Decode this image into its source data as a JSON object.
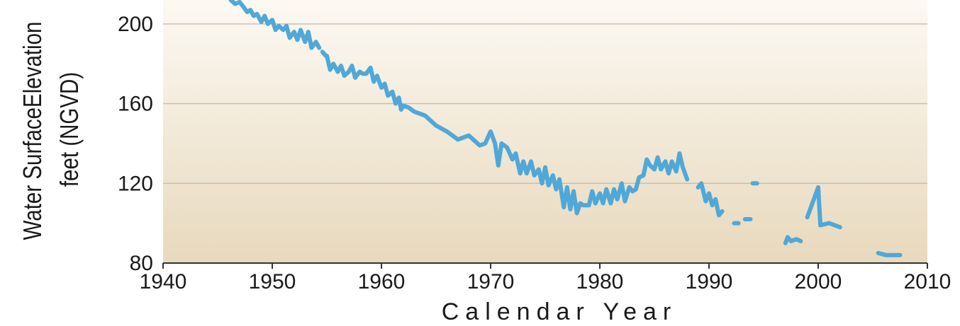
{
  "chart_data": {
    "type": "line",
    "title": "",
    "xlabel": "Calendar Year",
    "ylabel": [
      "Water SurfaceElevation",
      "feet (NGVD)"
    ],
    "xlim": [
      1940,
      2010
    ],
    "ylim": [
      80,
      212
    ],
    "x_ticks": [
      1940,
      1950,
      1960,
      1970,
      1980,
      1990,
      2000,
      2010
    ],
    "y_ticks": [
      80,
      120,
      160,
      200
    ],
    "grid": "horizontal",
    "colors": {
      "line": "#4fa8d8",
      "grid": "#c9bfae",
      "axis": "#333333",
      "bg_top": "#fcf9f3",
      "bg_bottom": "#e8d9bd"
    },
    "series": [
      {
        "segments": [
          [
            [
              1946.2,
              212
            ],
            [
              1946.6,
              210
            ],
            [
              1947.0,
              211
            ],
            [
              1947.3,
              209
            ],
            [
              1947.7,
              206
            ],
            [
              1948.0,
              207
            ],
            [
              1948.3,
              204
            ],
            [
              1948.6,
              205
            ],
            [
              1949.0,
              201
            ],
            [
              1949.3,
              204
            ],
            [
              1949.6,
              200
            ],
            [
              1950.0,
              202
            ],
            [
              1950.3,
              197
            ],
            [
              1950.6,
              199
            ],
            [
              1951.0,
              197
            ],
            [
              1951.3,
              199
            ],
            [
              1951.6,
              193
            ],
            [
              1952.0,
              196
            ],
            [
              1952.3,
              192
            ],
            [
              1952.6,
              197
            ],
            [
              1953.0,
              191
            ],
            [
              1953.3,
              196
            ],
            [
              1953.6,
              188
            ],
            [
              1954.0,
              191
            ],
            [
              1954.3,
              188
            ]
          ],
          [
            [
              1954.6,
              186
            ],
            [
              1954.9,
              184
            ]
          ],
          [
            [
              1955.0,
              184
            ],
            [
              1955.3,
              177
            ],
            [
              1955.6,
              180
            ],
            [
              1956.0,
              176
            ],
            [
              1956.3,
              179
            ],
            [
              1956.6,
              174
            ],
            [
              1957.0,
              176
            ],
            [
              1957.3,
              179
            ],
            [
              1957.6,
              173
            ],
            [
              1958.0,
              176
            ],
            [
              1958.3,
              175
            ],
            [
              1958.6,
              175
            ],
            [
              1959.0,
              178
            ],
            [
              1959.3,
              171
            ],
            [
              1959.6,
              174
            ],
            [
              1960.0,
              168
            ],
            [
              1960.3,
              170
            ],
            [
              1960.6,
              164
            ],
            [
              1961.0,
              166
            ],
            [
              1961.3,
              160
            ],
            [
              1961.6,
              163
            ],
            [
              1961.8,
              157
            ],
            [
              1962.0,
              159
            ],
            [
              1962.5,
              158
            ],
            [
              1963.0,
              156
            ],
            [
              1964.0,
              154
            ],
            [
              1965.0,
              149
            ],
            [
              1966.0,
              146
            ],
            [
              1967.0,
              142
            ],
            [
              1968.0,
              144
            ],
            [
              1969.0,
              139
            ],
            [
              1969.5,
              140
            ],
            [
              1970.0,
              146
            ],
            [
              1970.4,
              140
            ],
            [
              1970.7,
              129
            ],
            [
              1971.0,
              140
            ],
            [
              1971.5,
              138
            ],
            [
              1972.0,
              132
            ],
            [
              1972.3,
              135
            ],
            [
              1972.7,
              125
            ],
            [
              1973.0,
              131
            ],
            [
              1973.3,
              125
            ],
            [
              1973.7,
              131
            ],
            [
              1974.0,
              124
            ],
            [
              1974.4,
              127
            ],
            [
              1974.7,
              120
            ],
            [
              1975.0,
              128
            ],
            [
              1975.3,
              119
            ],
            [
              1975.7,
              124
            ],
            [
              1976.0,
              117
            ],
            [
              1976.3,
              122
            ],
            [
              1976.7,
              108
            ],
            [
              1977.0,
              118
            ],
            [
              1977.3,
              107
            ],
            [
              1977.6,
              116
            ],
            [
              1977.9,
              105
            ],
            [
              1978.2,
              110
            ],
            [
              1978.5,
              109
            ],
            [
              1979.0,
              109
            ],
            [
              1979.3,
              116
            ],
            [
              1979.6,
              110
            ],
            [
              1980.0,
              115
            ],
            [
              1980.3,
              110
            ],
            [
              1980.6,
              117
            ],
            [
              1981.0,
              110
            ],
            [
              1981.3,
              117
            ],
            [
              1981.6,
              112
            ],
            [
              1982.0,
              120
            ],
            [
              1982.3,
              111
            ],
            [
              1982.7,
              118
            ],
            [
              1983.0,
              116
            ],
            [
              1983.3,
              117
            ],
            [
              1983.6,
              123
            ],
            [
              1984.0,
              124
            ],
            [
              1984.3,
              132
            ],
            [
              1984.6,
              129
            ],
            [
              1985.0,
              127
            ],
            [
              1985.3,
              133
            ],
            [
              1985.6,
              127
            ],
            [
              1986.0,
              131
            ],
            [
              1986.3,
              125
            ],
            [
              1986.6,
              131
            ],
            [
              1987.0,
              126
            ],
            [
              1987.3,
              135
            ],
            [
              1987.6,
              128
            ],
            [
              1988.0,
              122
            ]
          ],
          [
            [
              1989.0,
              118
            ],
            [
              1989.3,
              120
            ],
            [
              1989.7,
              111
            ],
            [
              1990.0,
              115
            ],
            [
              1990.3,
              109
            ],
            [
              1990.6,
              112
            ],
            [
              1990.9,
              104
            ],
            [
              1991.2,
              106
            ]
          ],
          [
            [
              1992.3,
              100
            ],
            [
              1992.7,
              100
            ]
          ],
          [
            [
              1993.3,
              102
            ],
            [
              1993.8,
              102
            ]
          ],
          [
            [
              1994.0,
              120
            ],
            [
              1994.4,
              120
            ]
          ],
          [
            [
              1997.0,
              90
            ],
            [
              1997.2,
              93
            ],
            [
              1997.5,
              91
            ],
            [
              1998.0,
              92
            ],
            [
              1998.4,
              91
            ]
          ],
          [
            [
              1999.0,
              103
            ],
            [
              1999.2,
              106
            ],
            [
              2000.0,
              118
            ],
            [
              2000.2,
              99
            ],
            [
              2001.0,
              100
            ],
            [
              2002.0,
              98
            ]
          ],
          [
            [
              2005.5,
              85
            ],
            [
              2006.2,
              84
            ],
            [
              2007.0,
              84
            ],
            [
              2007.5,
              84
            ]
          ]
        ]
      }
    ]
  }
}
